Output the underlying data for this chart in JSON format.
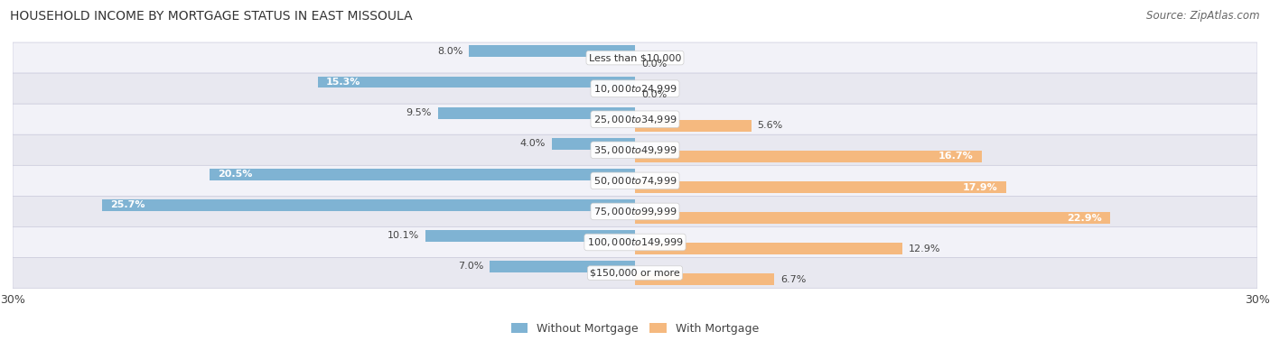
{
  "title": "HOUSEHOLD INCOME BY MORTGAGE STATUS IN EAST MISSOULA",
  "source": "Source: ZipAtlas.com",
  "categories": [
    "Less than $10,000",
    "$10,000 to $24,999",
    "$25,000 to $34,999",
    "$35,000 to $49,999",
    "$50,000 to $74,999",
    "$75,000 to $99,999",
    "$100,000 to $149,999",
    "$150,000 or more"
  ],
  "without_mortgage": [
    8.0,
    15.3,
    9.5,
    4.0,
    20.5,
    25.7,
    10.1,
    7.0
  ],
  "with_mortgage": [
    0.0,
    0.0,
    5.6,
    16.7,
    17.9,
    22.9,
    12.9,
    6.7
  ],
  "color_without": "#7fb3d3",
  "color_with": "#f5b97f",
  "xlim": 30.0,
  "bg_color": "#ffffff",
  "row_bg_even": "#f2f2f8",
  "row_bg_odd": "#e8e8f0",
  "legend_label_without": "Without Mortgage",
  "legend_label_with": "With Mortgage",
  "title_fontsize": 10,
  "source_fontsize": 8.5,
  "tick_fontsize": 9,
  "cat_fontsize": 8,
  "val_fontsize": 8
}
